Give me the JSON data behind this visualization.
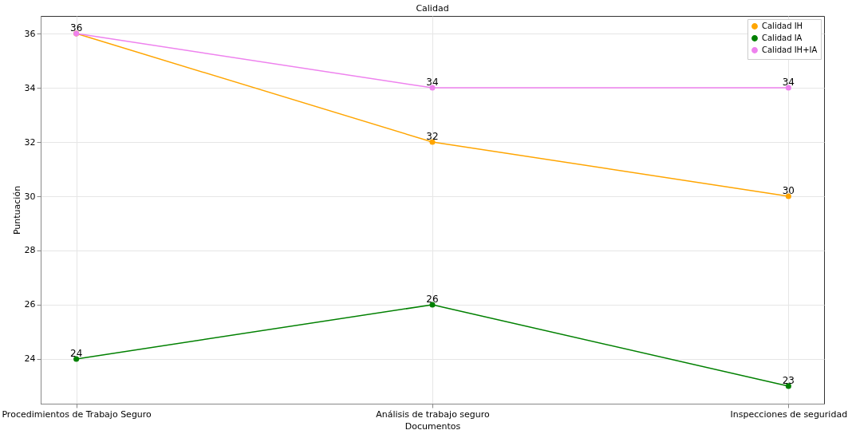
{
  "chart_data": {
    "type": "line",
    "title": "Calidad",
    "xlabel": "Documentos",
    "ylabel": "Puntuación",
    "categories": [
      "Procedimientos de Trabajo Seguro",
      "Análisis de trabajo seguro",
      "Inspecciones de seguridad"
    ],
    "series": [
      {
        "name": "Calidad IH",
        "color": "#ffa500",
        "values": [
          36,
          32,
          30
        ],
        "value_labels": [
          "36",
          "32",
          "30"
        ]
      },
      {
        "name": "Calidad IA",
        "color": "#008000",
        "values": [
          24,
          26,
          23
        ],
        "value_labels": [
          "24",
          "26",
          "23"
        ]
      },
      {
        "name": "Calidad IH+IA",
        "color": "#ee82ee",
        "values": [
          36,
          34,
          34
        ],
        "value_labels": [
          null,
          "34",
          "34"
        ]
      }
    ],
    "ylim": [
      22.35,
      36.65
    ],
    "yticks": [
      24,
      26,
      28,
      30,
      32,
      34,
      36
    ],
    "grid": true,
    "legend": "top right",
    "marker": "circle",
    "line_style": "solid"
  }
}
